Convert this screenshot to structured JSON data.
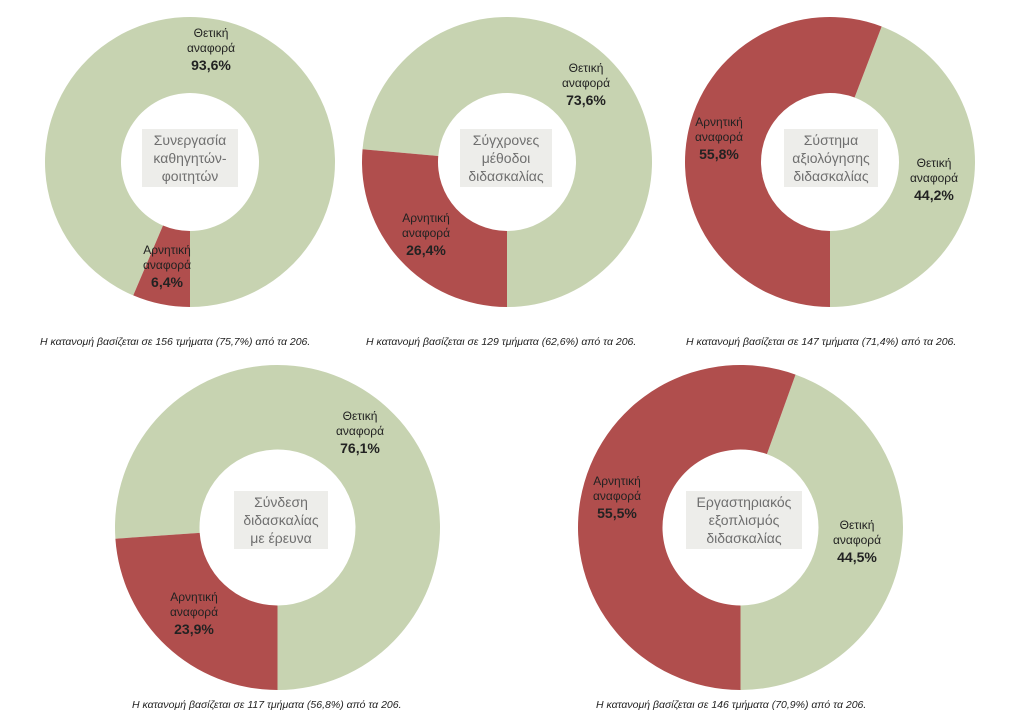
{
  "colors": {
    "positive": "#c7d3b1",
    "negative": "#b04e4d",
    "center_box": "#ededea"
  },
  "chart_data": [
    {
      "type": "pie",
      "center_label": [
        "Συνεργασία",
        "καθηγητών-",
        "φοιτητών"
      ],
      "slices": [
        {
          "label": [
            "Θετική",
            "αναφορά"
          ],
          "value": 93.6,
          "value_label": "93,6%",
          "color": "#c7d3b1"
        },
        {
          "label": [
            "Αρνητική",
            "αναφορά"
          ],
          "value": 6.4,
          "value_label": "6,4%",
          "color": "#b04e4d"
        }
      ],
      "caption": "Η κατανομή βασίζεται σε 156 τμήματα (75,7%) από τα 206."
    },
    {
      "type": "pie",
      "center_label": [
        "Σύγχρονες",
        "μέθοδοι",
        "διδασκαλίας"
      ],
      "slices": [
        {
          "label": [
            "Θετική",
            "αναφορά"
          ],
          "value": 73.6,
          "value_label": "73,6%",
          "color": "#c7d3b1"
        },
        {
          "label": [
            "Αρνητική",
            "αναφορά"
          ],
          "value": 26.4,
          "value_label": "26,4%",
          "color": "#b04e4d"
        }
      ],
      "caption": "Η κατανομή βασίζεται σε 129 τμήματα (62,6%) από τα 206."
    },
    {
      "type": "pie",
      "center_label": [
        "Σύστημα",
        "αξιολόγησης",
        "διδασκαλίας"
      ],
      "slices": [
        {
          "label": [
            "Θετική",
            "αναφορά"
          ],
          "value": 44.2,
          "value_label": "44,2%",
          "color": "#c7d3b1"
        },
        {
          "label": [
            "Αρνητική",
            "αναφορά"
          ],
          "value": 55.8,
          "value_label": "55,8%",
          "color": "#b04e4d"
        }
      ],
      "caption": "Η κατανομή βασίζεται σε 147 τμήματα (71,4%) από τα 206."
    },
    {
      "type": "pie",
      "center_label": [
        "Σύνδεση",
        "διδασκαλίας",
        "με έρευνα"
      ],
      "slices": [
        {
          "label": [
            "Θετική",
            "αναφορά"
          ],
          "value": 76.1,
          "value_label": "76,1%",
          "color": "#c7d3b1"
        },
        {
          "label": [
            "Αρνητική",
            "αναφορά"
          ],
          "value": 23.9,
          "value_label": "23,9%",
          "color": "#b04e4d"
        }
      ],
      "caption": "Η κατανομή βασίζεται σε 117 τμήματα (56,8%) από τα 206."
    },
    {
      "type": "pie",
      "center_label": [
        "Εργαστηριακός",
        "εξοπλισμός",
        "διδασκαλίας"
      ],
      "slices": [
        {
          "label": [
            "Θετική",
            "αναφορά"
          ],
          "value": 44.5,
          "value_label": "44,5%",
          "color": "#c7d3b1"
        },
        {
          "label": [
            "Αρνητική",
            "αναφορά"
          ],
          "value": 55.5,
          "value_label": "55,5%",
          "color": "#b04e4d"
        }
      ],
      "caption": "Η κατανομή βασίζεται σε 146 τμήματα (70,9%) από τα 206."
    }
  ]
}
